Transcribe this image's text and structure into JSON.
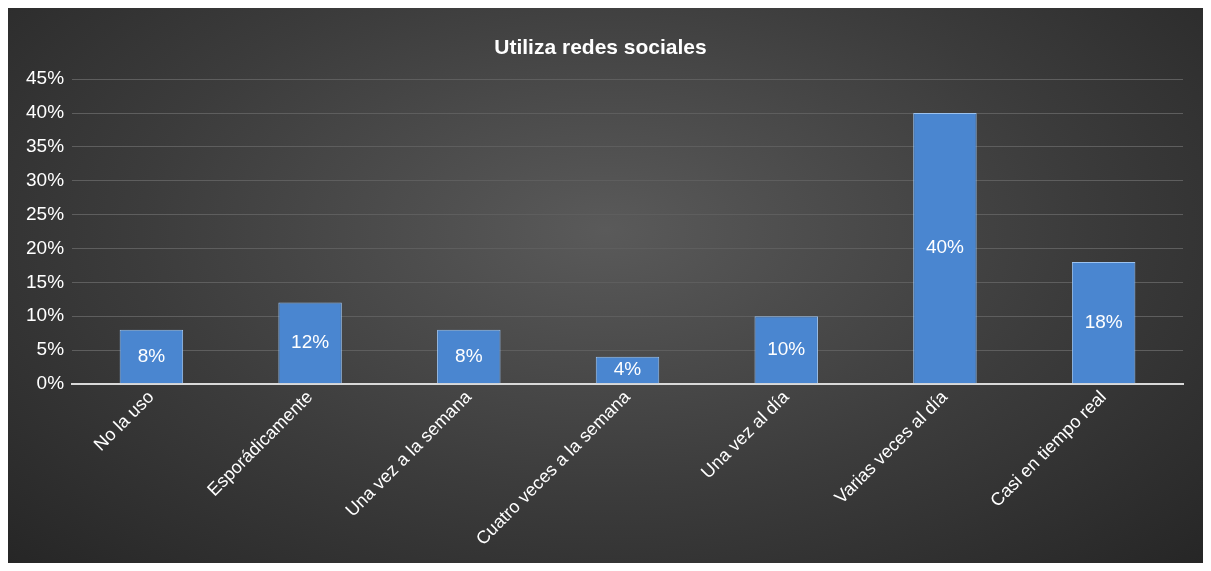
{
  "chart_data": {
    "type": "bar",
    "title": "Utiliza redes sociales",
    "categories": [
      "No la uso",
      "Esporádicamente",
      "Una vez a la semana",
      "Cuatro veces a la semana",
      "Una vez al día",
      "Varias veces al día",
      "Casi en tiempo real"
    ],
    "values": [
      8,
      12,
      8,
      4,
      10,
      40,
      18
    ],
    "value_labels": [
      "8%",
      "12%",
      "8%",
      "4%",
      "10%",
      "40%",
      "18%"
    ],
    "color": "#4a86d0",
    "ylim": [
      0,
      45
    ],
    "yticks": [
      {
        "value": 0,
        "label": "0%"
      },
      {
        "value": 5,
        "label": "5%"
      },
      {
        "value": 10,
        "label": "10%"
      },
      {
        "value": 15,
        "label": "15%"
      },
      {
        "value": 20,
        "label": "20%"
      },
      {
        "value": 25,
        "label": "25%"
      },
      {
        "value": 30,
        "label": "30%"
      },
      {
        "value": 35,
        "label": "35%"
      },
      {
        "value": 40,
        "label": "40%"
      },
      {
        "value": 45,
        "label": "45%"
      }
    ],
    "grid": "y",
    "legend": false
  }
}
